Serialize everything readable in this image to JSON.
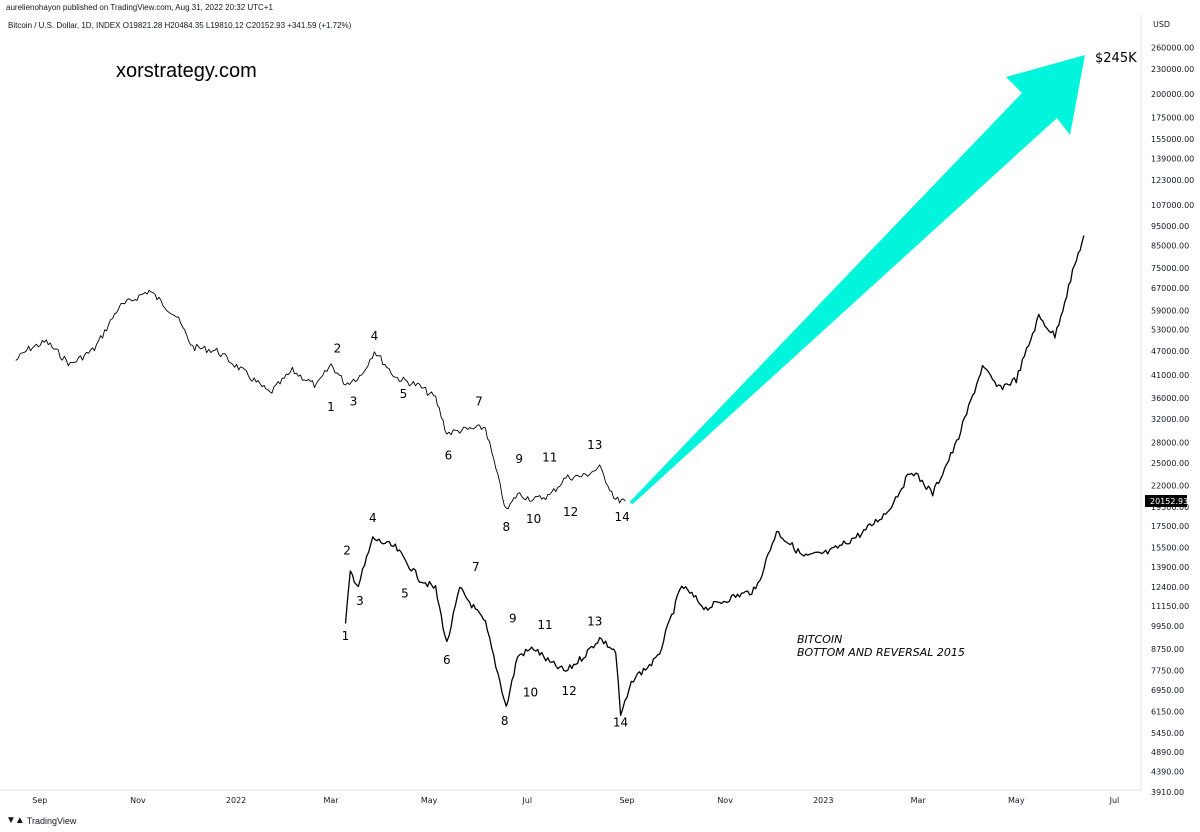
{
  "header": {
    "publisher": "aurelienohayon published on TradingView.com, Aug 31, 2022 20:32 UTC+1",
    "ohlc": "Bitcoin / U.S. Dollar, 1D, INDEX  O19821.28  H20484.35  L19810.12  C20152.93  +341.59 (+1.72%)"
  },
  "watermark": "xorstrategy.com",
  "footer": {
    "brand": "TradingView",
    "logo_icon": "tradingview-logo-icon"
  },
  "colors": {
    "arrow": "#00f5dc",
    "line": "#000000",
    "badge": "#000000"
  },
  "chart_data": {
    "type": "line",
    "currency": "USD",
    "scale": "log",
    "last_price": "20152.93",
    "y_ticks": [
      "260000.00",
      "230000.00",
      "200000.00",
      "175000.00",
      "155000.00",
      "139000.00",
      "123000.00",
      "107000.00",
      "95000.00",
      "85000.00",
      "75000.00",
      "67000.00",
      "59000.00",
      "53000.00",
      "47000.00",
      "41000.00",
      "36000.00",
      "32000.00",
      "28000.00",
      "25000.00",
      "22000.00",
      "19500.00",
      "17500.00",
      "15500.00",
      "13900.00",
      "12400.00",
      "11150.00",
      "9950.00",
      "8750.00",
      "7750.00",
      "6950.00",
      "6150.00",
      "5450.00",
      "4890.00",
      "4390.00",
      "3910.00"
    ],
    "x_ticks": [
      "Sep",
      "Nov",
      "2022",
      "Mar",
      "May",
      "Jul",
      "Sep",
      "Nov",
      "2023",
      "Mar",
      "May",
      "Jul"
    ],
    "target_label": "$245K",
    "annotation": [
      "BITCOIN",
      "BOTTOM AND REVERSAL 2015"
    ],
    "series": [
      {
        "x": [
          "2021-08-17",
          "2021-08-25",
          "2021-09-05",
          "2021-09-20",
          "2021-10-05",
          "2021-10-20",
          "2021-11-08",
          "2021-11-25",
          "2021-12-05",
          "2021-12-20",
          "2022-01-05",
          "2022-01-22",
          "2022-02-05",
          "2022-02-20",
          "2022-03-01",
          "2022-03-10",
          "2022-03-20",
          "2022-03-28",
          "2022-04-10",
          "2022-04-25",
          "2022-05-05",
          "2022-05-12",
          "2022-05-20",
          "2022-06-05",
          "2022-06-18",
          "2022-06-25",
          "2022-07-05",
          "2022-07-15",
          "2022-07-25",
          "2022-08-05",
          "2022-08-15",
          "2022-08-25",
          "2022-08-31"
        ],
        "y": [
          44500,
          47500,
          49500,
          43500,
          47500,
          60000,
          66000,
          57000,
          48000,
          47000,
          42000,
          37000,
          42000,
          38500,
          43500,
          39000,
          41000,
          47000,
          40500,
          38500,
          36000,
          29500,
          30000,
          30500,
          19000,
          21000,
          20300,
          20800,
          23000,
          23200,
          24300,
          20300,
          20150
        ]
      },
      {
        "x": [
          "2022-03-10",
          "2022-03-13",
          "2022-03-18",
          "2022-03-27",
          "2022-04-10",
          "2022-04-25",
          "2022-05-05",
          "2022-05-12",
          "2022-05-20",
          "2022-06-05",
          "2022-06-18",
          "2022-06-25",
          "2022-07-05",
          "2022-07-15",
          "2022-07-25",
          "2022-08-05",
          "2022-08-15",
          "2022-08-25",
          "2022-08-28",
          "2022-09-05",
          "2022-09-20",
          "2022-10-05",
          "2022-10-20",
          "2022-11-05",
          "2022-11-20",
          "2022-12-03",
          "2022-12-20",
          "2023-01-05",
          "2023-01-25",
          "2023-02-10",
          "2023-02-25",
          "2023-03-10",
          "2023-03-25",
          "2023-04-10",
          "2023-04-20",
          "2023-05-01",
          "2023-05-15",
          "2023-05-25",
          "2023-06-05",
          "2023-06-12"
        ],
        "y": [
          10000,
          13500,
          12500,
          16300,
          15500,
          13000,
          12300,
          9000,
          12300,
          10100,
          6300,
          8400,
          8800,
          8100,
          7700,
          8400,
          9300,
          8600,
          6000,
          7400,
          8300,
          12500,
          11000,
          11700,
          12200,
          17000,
          14700,
          15100,
          16800,
          19000,
          24000,
          21000,
          28000,
          43000,
          38000,
          40000,
          57000,
          51000,
          73000,
          90000
        ]
      }
    ],
    "wave_labels_top": [
      {
        "label": "1",
        "x": "2022-03-01",
        "y": 33500
      },
      {
        "label": "2",
        "x": "2022-03-05",
        "y": 46500
      },
      {
        "label": "3",
        "x": "2022-03-15",
        "y": 34500
      },
      {
        "label": "4",
        "x": "2022-03-28",
        "y": 50000
      },
      {
        "label": "5",
        "x": "2022-04-15",
        "y": 36000
      },
      {
        "label": "6",
        "x": "2022-05-13",
        "y": 25500
      },
      {
        "label": "7",
        "x": "2022-06-01",
        "y": 34500
      },
      {
        "label": "8",
        "x": "2022-06-18",
        "y": 17000
      },
      {
        "label": "9",
        "x": "2022-06-26",
        "y": 25000
      },
      {
        "label": "10",
        "x": "2022-07-05",
        "y": 17800
      },
      {
        "label": "11",
        "x": "2022-07-15",
        "y": 25200
      },
      {
        "label": "12",
        "x": "2022-07-28",
        "y": 18500
      },
      {
        "label": "13",
        "x": "2022-08-12",
        "y": 27000
      },
      {
        "label": "14",
        "x": "2022-08-29",
        "y": 18000
      }
    ],
    "wave_labels_bottom": [
      {
        "label": "1",
        "x": "2022-03-10",
        "y": 9200
      },
      {
        "label": "2",
        "x": "2022-03-11",
        "y": 14900
      },
      {
        "label": "3",
        "x": "2022-03-19",
        "y": 11200
      },
      {
        "label": "4",
        "x": "2022-03-27",
        "y": 17900
      },
      {
        "label": "5",
        "x": "2022-04-16",
        "y": 11700
      },
      {
        "label": "6",
        "x": "2022-05-12",
        "y": 8050
      },
      {
        "label": "7",
        "x": "2022-05-30",
        "y": 13600
      },
      {
        "label": "8",
        "x": "2022-06-17",
        "y": 5700
      },
      {
        "label": "9",
        "x": "2022-06-22",
        "y": 10150
      },
      {
        "label": "10",
        "x": "2022-07-03",
        "y": 6700
      },
      {
        "label": "11",
        "x": "2022-07-12",
        "y": 9800
      },
      {
        "label": "12",
        "x": "2022-07-27",
        "y": 6750
      },
      {
        "label": "13",
        "x": "2022-08-12",
        "y": 10000
      },
      {
        "label": "14",
        "x": "2022-08-28",
        "y": 5650
      }
    ]
  }
}
